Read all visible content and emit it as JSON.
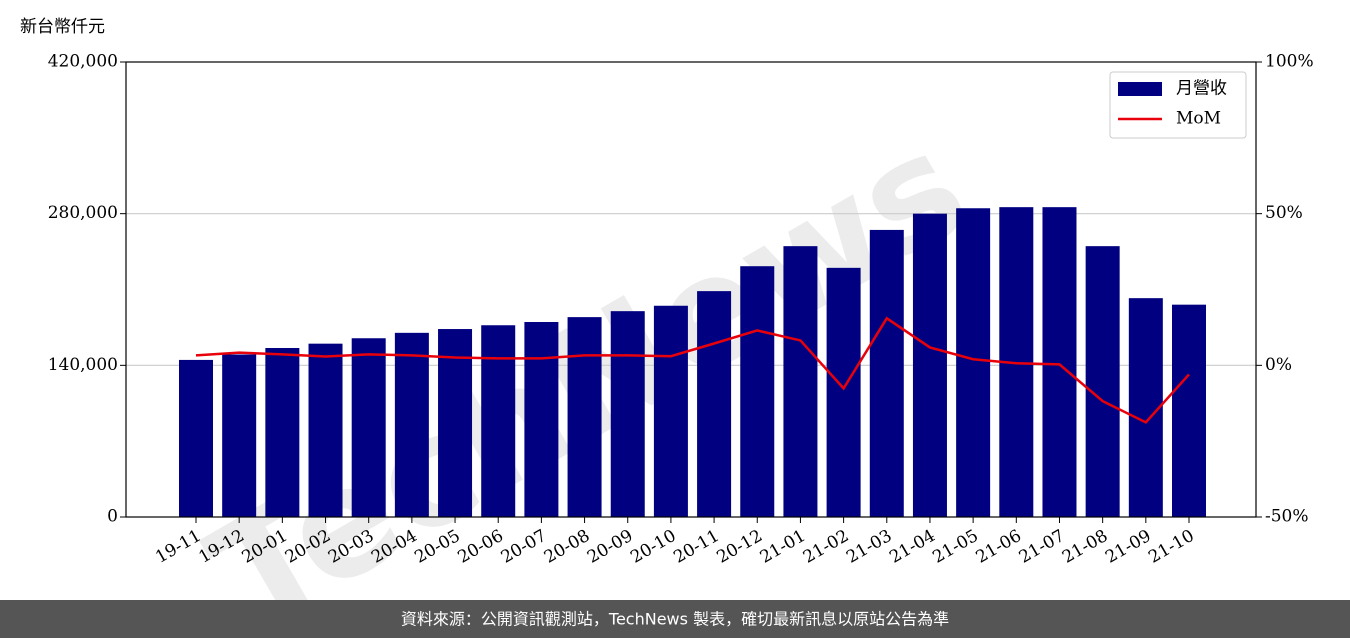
{
  "chart_data": {
    "type": "bar",
    "y_label": "新台幣仟元",
    "categories": [
      "19-11",
      "19-12",
      "20-01",
      "20-02",
      "20-03",
      "20-04",
      "20-05",
      "20-06",
      "20-07",
      "20-08",
      "20-09",
      "20-10",
      "20-11",
      "20-12",
      "21-01",
      "21-02",
      "21-03",
      "21-04",
      "21-05",
      "21-06",
      "21-07",
      "21-08",
      "21-09",
      "21-10"
    ],
    "series": [
      {
        "name": "月營收",
        "type": "bar",
        "color": "#000080",
        "values": [
          145000,
          150000,
          156000,
          160000,
          165000,
          170000,
          173500,
          177000,
          180000,
          184500,
          190000,
          195000,
          208500,
          231500,
          250000,
          230000,
          265000,
          280000,
          285000,
          286000,
          286000,
          250000,
          202000,
          196000
        ]
      },
      {
        "name": "MoM",
        "type": "line",
        "axis": "y2",
        "color": "#e8000b",
        "values": [
          3.3,
          4.2,
          3.6,
          2.9,
          3.6,
          3.3,
          2.6,
          2.3,
          2.3,
          3.3,
          3.3,
          3.0,
          7.2,
          11.5,
          8.2,
          -7.6,
          15.5,
          5.9,
          2.0,
          0.7,
          0.3,
          -11.8,
          -18.8,
          -3.0
        ]
      }
    ],
    "ylim": [
      0,
      420000
    ],
    "yticks": [
      0,
      {
        "value": 140000,
        "label": "140,000"
      },
      {
        "value": 280000,
        "label": "280,000"
      },
      {
        "value": 420000,
        "label": "420,000"
      }
    ],
    "y2lim": [
      -50,
      100
    ],
    "y2ticks": [
      {
        "value": -50,
        "label": "-50%"
      },
      {
        "value": 0,
        "label": "0%"
      },
      {
        "value": 50,
        "label": "50%"
      },
      {
        "value": 100,
        "label": "100%"
      }
    ],
    "grid": true,
    "legend": "upper right"
  },
  "watermark": "TechNews",
  "footer": "資料來源：公開資訊觀測站，TechNews 製表，確切最新訊息以原站公告為準"
}
